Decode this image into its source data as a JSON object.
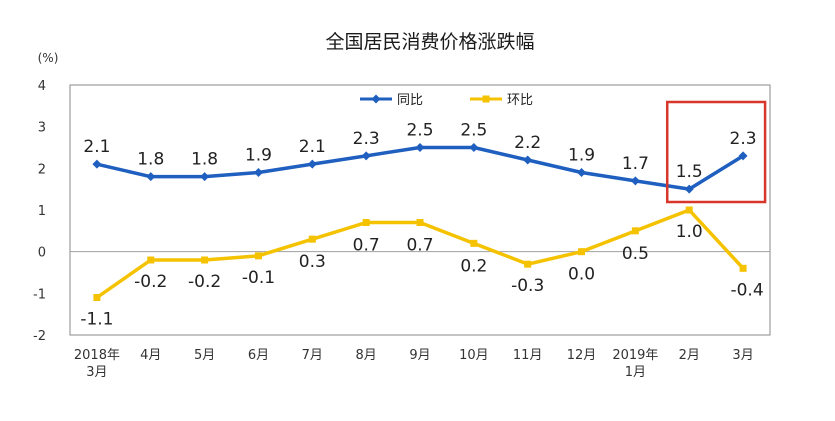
{
  "chart_data": {
    "type": "line",
    "title": "全国居民消费价格涨跌幅",
    "unit_label": "(%)",
    "categories": [
      [
        "2018年",
        "3月"
      ],
      [
        "4月"
      ],
      [
        "5月"
      ],
      [
        "6月"
      ],
      [
        "7月"
      ],
      [
        "8月"
      ],
      [
        "9月"
      ],
      [
        "10月"
      ],
      [
        "11月"
      ],
      [
        "12月"
      ],
      [
        "2019年",
        "1月"
      ],
      [
        "2月"
      ],
      [
        "3月"
      ]
    ],
    "ylim": [
      -2,
      4
    ],
    "yticks": [
      "4",
      "3",
      "2",
      "1",
      "0",
      "-1",
      "-2"
    ],
    "legend_position": "top-center",
    "grid": false,
    "series": [
      {
        "name": "同比",
        "color": "#1f5fbf",
        "marker": "diamond",
        "values": [
          2.1,
          1.8,
          1.8,
          1.9,
          2.1,
          2.3,
          2.5,
          2.5,
          2.2,
          1.9,
          1.7,
          1.5,
          2.3
        ],
        "labels": [
          "2.1",
          "1.8",
          "1.8",
          "1.9",
          "2.1",
          "2.3",
          "2.5",
          "2.5",
          "2.2",
          "1.9",
          "1.7",
          "1.5",
          "2.3"
        ]
      },
      {
        "name": "环比",
        "color": "#f5c200",
        "marker": "square",
        "values": [
          -1.1,
          -0.2,
          -0.2,
          -0.1,
          0.3,
          0.7,
          0.7,
          0.2,
          -0.3,
          0.0,
          0.5,
          1.0,
          -0.4
        ],
        "labels": [
          "-1.1",
          "-0.2",
          "-0.2",
          "-0.1",
          "0.3",
          "0.7",
          "0.7",
          "0.2",
          "-0.3",
          "0.0",
          "0.5",
          "1.0",
          "-0.4"
        ]
      }
    ],
    "highlight": {
      "from_index": 11,
      "to_index": 12,
      "color": "#d9362b"
    }
  }
}
